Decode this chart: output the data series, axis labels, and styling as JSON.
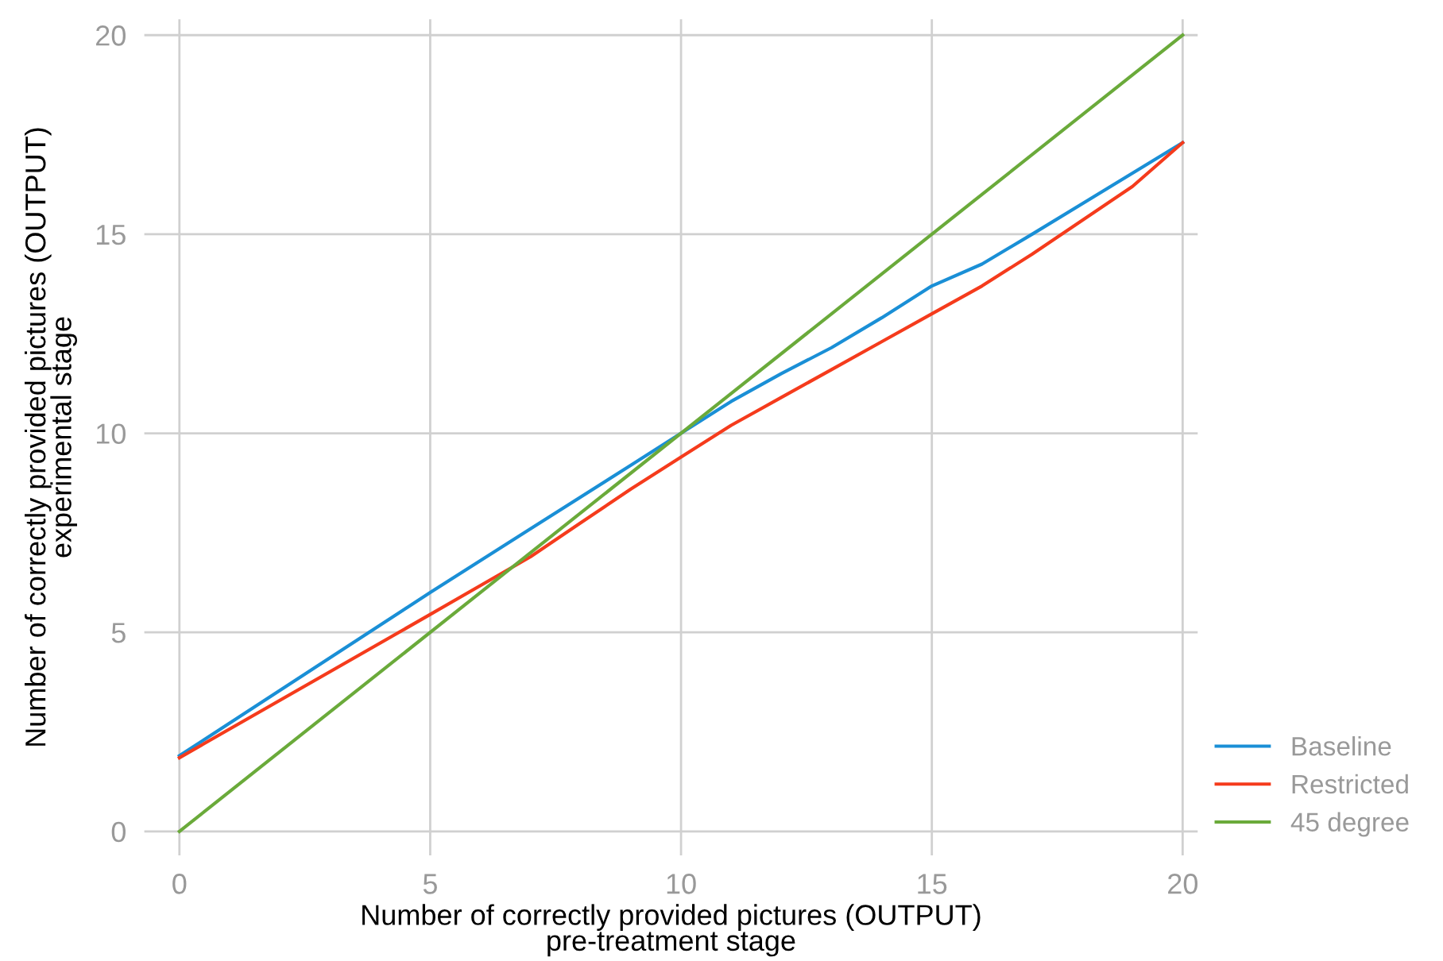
{
  "chart_data": {
    "type": "line",
    "xlabel": "Number of correctly provided pictures (OUTPUT)\npre-treatment stage",
    "ylabel": "Number of correctly provided pictures (OUTPUT)\nexperimental stage",
    "series": [
      {
        "name": "Baseline",
        "color": "#1a8fd6",
        "x": [
          0,
          5,
          7,
          9,
          10,
          11,
          12,
          13,
          14,
          15,
          16,
          17,
          20
        ],
        "values": [
          1.9,
          6.0,
          7.6,
          9.2,
          10.0,
          10.8,
          11.5,
          12.15,
          12.9,
          13.7,
          14.25,
          15.0,
          17.3
        ]
      },
      {
        "name": "Restricted",
        "color": "#f53b1c",
        "x": [
          0,
          5,
          7,
          8,
          9,
          10,
          11,
          12,
          13,
          14,
          15,
          16,
          17,
          19,
          20
        ],
        "values": [
          1.85,
          5.45,
          6.9,
          7.75,
          8.6,
          9.4,
          10.2,
          10.9,
          11.6,
          12.3,
          13.0,
          13.7,
          14.5,
          16.2,
          17.3
        ]
      },
      {
        "name": "45 degree",
        "color": "#6aaa3a",
        "x": [
          0,
          20
        ],
        "values": [
          0,
          20
        ]
      }
    ],
    "xlim": [
      -0.7,
      20.3
    ],
    "ylim": [
      -0.6,
      20.4
    ],
    "xticks": [
      0,
      5,
      10,
      15,
      20
    ],
    "yticks": [
      0,
      5,
      10,
      15,
      20
    ],
    "grid": true,
    "legend": "bottom right"
  }
}
